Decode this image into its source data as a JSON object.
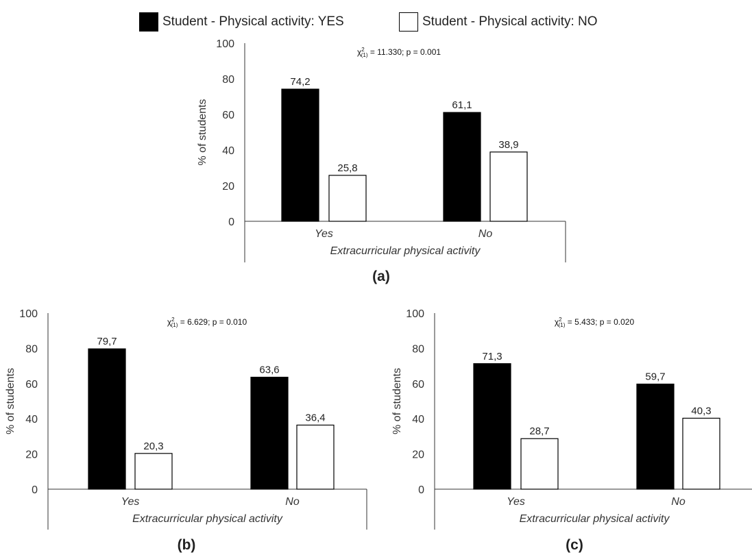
{
  "legend": [
    {
      "label": "Student - Physical activity: YES",
      "color": "#000000"
    },
    {
      "label": "Student - Physical activity: NO",
      "color": "#ffffff"
    }
  ],
  "chart_data": [
    {
      "type": "bar",
      "panel_label": "(a)",
      "annotation": {
        "pre": "χ",
        "sup": "2",
        "sub": "(1)",
        "post": " = 11.330; p = 0.001"
      },
      "categories": [
        "Yes",
        "No"
      ],
      "series": [
        {
          "name": "Student - Physical activity: YES",
          "color": "#000000",
          "values": [
            74.2,
            61.1
          ],
          "labels": [
            "74,2",
            "61,1"
          ]
        },
        {
          "name": "Student - Physical activity: NO",
          "color": "#ffffff",
          "values": [
            25.8,
            38.9
          ],
          "labels": [
            "25,8",
            "38,9"
          ]
        }
      ],
      "xlabel": "Extracurricular physical activity",
      "ylabel": "% of students",
      "ylim": [
        0,
        100
      ],
      "yticks": [
        0,
        20,
        40,
        60,
        80,
        100
      ],
      "grid": false
    },
    {
      "type": "bar",
      "panel_label": "(b)",
      "annotation": {
        "pre": "χ",
        "sup": "2",
        "sub": "(1)",
        "post": " = 6.629; p = 0.010"
      },
      "categories": [
        "Yes",
        "No"
      ],
      "series": [
        {
          "name": "Student - Physical activity: YES",
          "color": "#000000",
          "values": [
            79.7,
            63.6
          ],
          "labels": [
            "79,7",
            "63,6"
          ]
        },
        {
          "name": "Student - Physical activity: NO",
          "color": "#ffffff",
          "values": [
            20.3,
            36.4
          ],
          "labels": [
            "20,3",
            "36,4"
          ]
        }
      ],
      "xlabel": "Extracurricular physical activity",
      "ylabel": "% of students",
      "ylim": [
        0,
        100
      ],
      "yticks": [
        0,
        20,
        40,
        60,
        80,
        100
      ],
      "grid": false
    },
    {
      "type": "bar",
      "panel_label": "(c)",
      "annotation": {
        "pre": "χ",
        "sup": "2",
        "sub": "(1)",
        "post": " = 5.433; p = 0.020"
      },
      "categories": [
        "Yes",
        "No"
      ],
      "series": [
        {
          "name": "Student - Physical activity: YES",
          "color": "#000000",
          "values": [
            71.3,
            59.7
          ],
          "labels": [
            "71,3",
            "59,7"
          ]
        },
        {
          "name": "Student - Physical activity: NO",
          "color": "#ffffff",
          "values": [
            28.7,
            40.3
          ],
          "labels": [
            "28,7",
            "40,3"
          ]
        }
      ],
      "xlabel": "Extracurricular physical activity",
      "ylabel": "% of students",
      "ylim": [
        0,
        100
      ],
      "yticks": [
        0,
        20,
        40,
        60,
        80,
        100
      ],
      "grid": false
    }
  ]
}
